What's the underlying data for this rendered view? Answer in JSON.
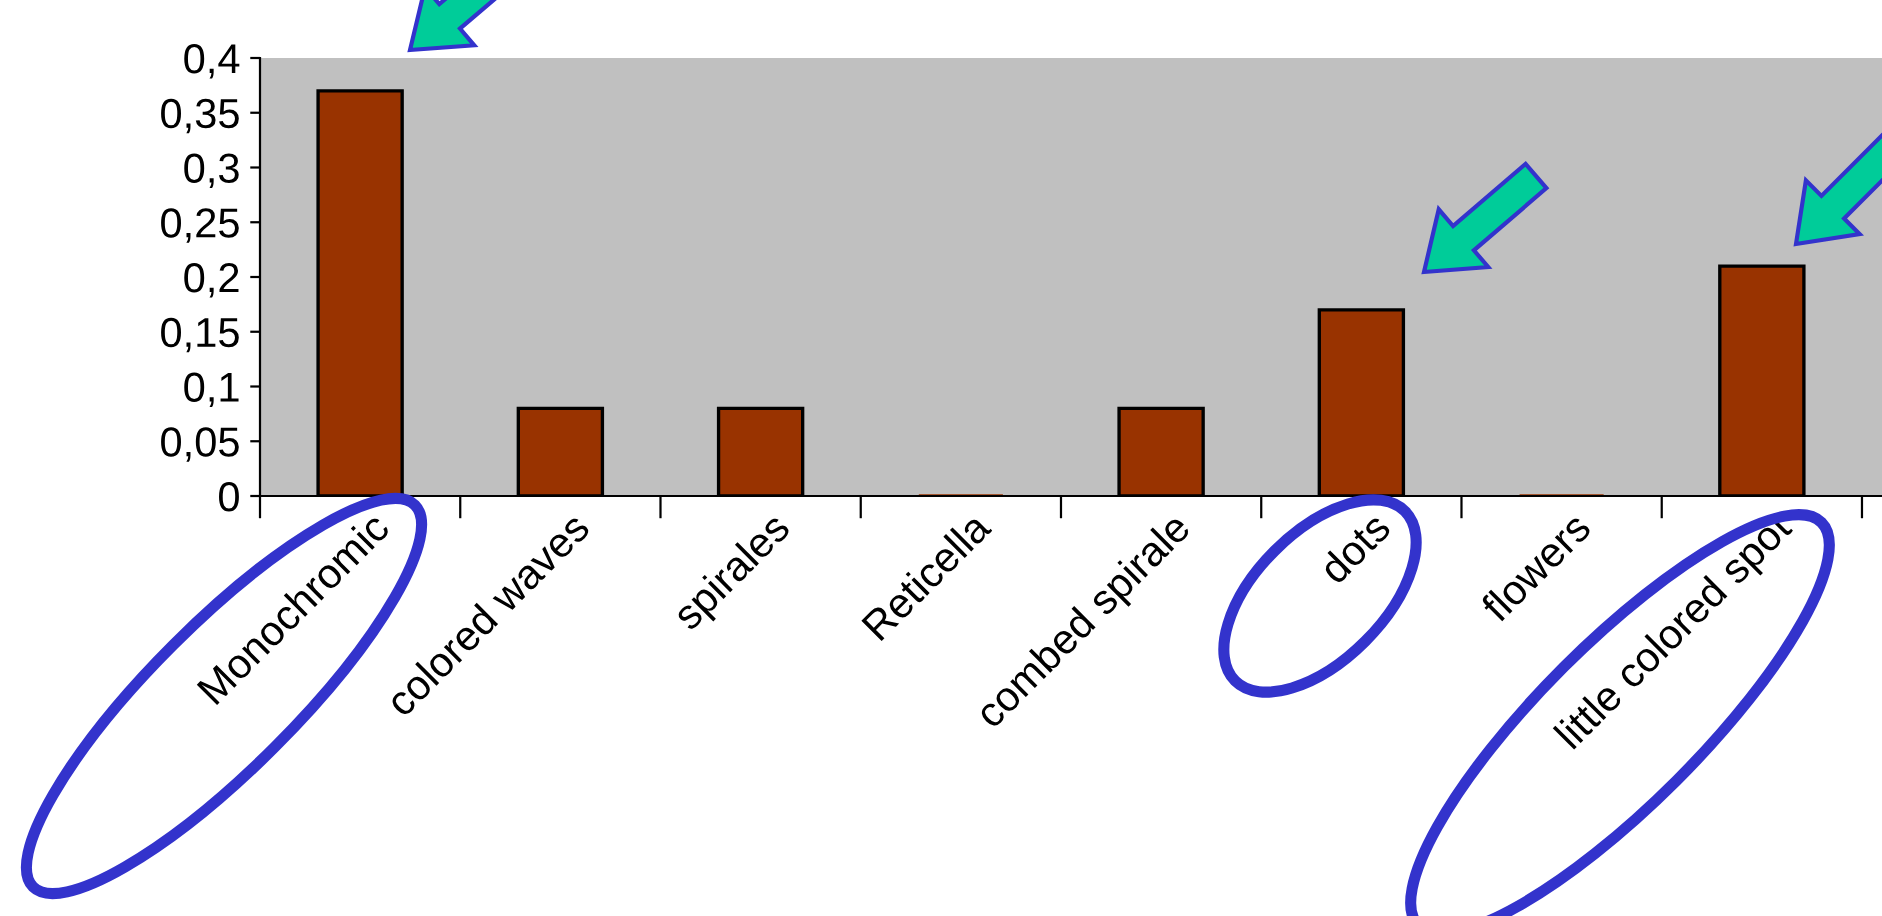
{
  "chart_data": {
    "type": "bar",
    "categories": [
      "Monochromic",
      "colored waves",
      "spirales",
      "Reticella",
      "combed spirale",
      "dots",
      "flowers",
      "little colored spot"
    ],
    "values": [
      0.37,
      0.08,
      0.08,
      0,
      0.08,
      0.17,
      0,
      0.21
    ],
    "color": "#993300",
    "ylim": [
      0,
      0.4
    ],
    "yticks": [
      0,
      {
        "value": 0.05,
        "label": "0,05"
      },
      {
        "value": 0.1,
        "label": "0,1"
      },
      {
        "value": 0.15,
        "label": "0,15"
      },
      {
        "value": 0.2,
        "label": "0,2"
      },
      {
        "value": 0.25,
        "label": "0,25"
      },
      {
        "value": 0.3,
        "label": "0,3"
      },
      {
        "value": 0.35,
        "label": "0,35"
      },
      {
        "value": 0.4,
        "label": "0,4"
      }
    ],
    "grid": false
  }
}
